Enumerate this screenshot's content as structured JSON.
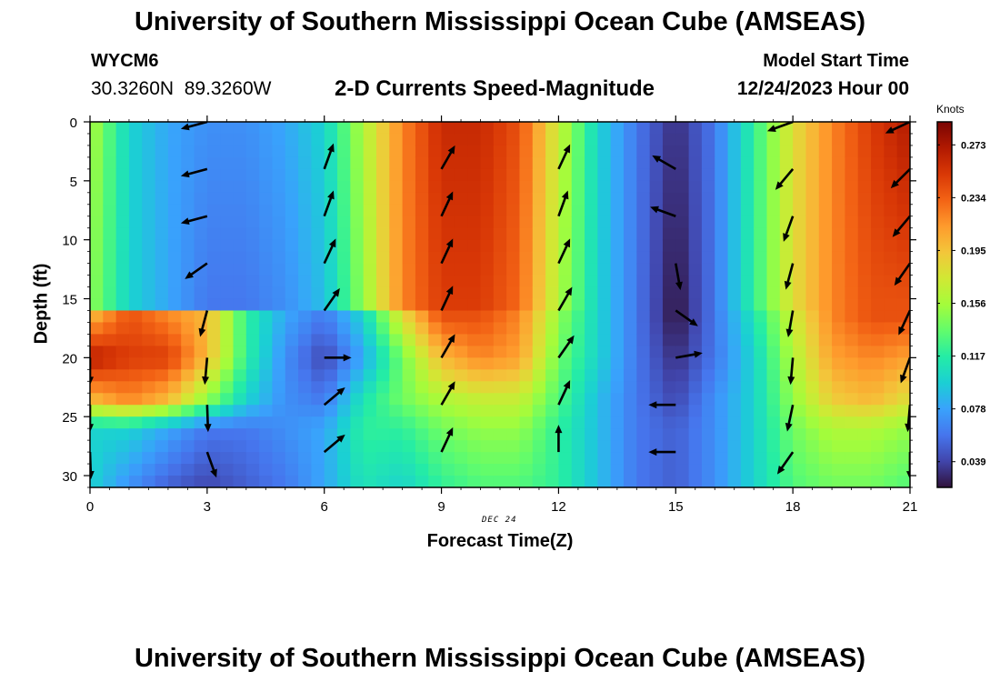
{
  "header": {
    "title": "University of Southern Mississippi Ocean Cube (AMSEAS)",
    "station_id": "WYCM6",
    "coordinates": "30.3260N  89.3260W",
    "subtitle": "2-D Currents Speed-Magnitude",
    "model_start_label": "Model Start Time",
    "model_start_value": "12/24/2023 Hour 00"
  },
  "footer": {
    "title": "University of Southern Mississippi Ocean Cube (AMSEAS)"
  },
  "colors": {
    "colormap": [
      "#30123b",
      "#4145ab",
      "#4675ed",
      "#39a2fc",
      "#1bcfd4",
      "#24eca6",
      "#61fc6c",
      "#a4fc3b",
      "#d1e834",
      "#f3c63a",
      "#fe9b2d",
      "#f36315",
      "#d93806",
      "#b11901",
      "#7a0403"
    ]
  },
  "chart_data": {
    "type": "heatmap",
    "title": "2-D Currents Speed-Magnitude",
    "xlabel": "Forecast Time(Z)",
    "ylabel": "Depth (ft)",
    "x_annotation": "DEC 24",
    "colorbar_label": "Knots",
    "xlim": [
      0,
      21
    ],
    "ylim": [
      0,
      31
    ],
    "x_ticks": [
      "0",
      "3",
      "6",
      "9",
      "12",
      "15",
      "18",
      "21"
    ],
    "y_ticks": [
      "0",
      "5",
      "10",
      "15",
      "20",
      "25",
      "30"
    ],
    "colorbar_range": [
      0.02,
      0.29
    ],
    "colorbar_ticks": [
      "0.273",
      "0.234",
      "0.195",
      "0.156",
      "0.117",
      "0.078",
      "0.039"
    ],
    "colorbar_tick_values": [
      0.273,
      0.234,
      0.195,
      0.156,
      0.117,
      0.078,
      0.039
    ],
    "time_hours": [
      0,
      1,
      2,
      3,
      4,
      5,
      6,
      7,
      8,
      9,
      10,
      11,
      12,
      13,
      14,
      15,
      16,
      17,
      18,
      19,
      20,
      21
    ],
    "depth_ft": [
      0,
      15.5,
      16.5,
      20,
      23.5,
      26,
      31
    ],
    "speed_profiles": [
      [
        0.16,
        0.15,
        0.2,
        0.27,
        0.2,
        0.1,
        0.1
      ],
      [
        0.1,
        0.1,
        0.24,
        0.25,
        0.22,
        0.1,
        0.07
      ],
      [
        0.08,
        0.08,
        0.22,
        0.25,
        0.2,
        0.08,
        0.05
      ],
      [
        0.07,
        0.06,
        0.2,
        0.2,
        0.15,
        0.06,
        0.04
      ],
      [
        0.07,
        0.06,
        0.12,
        0.12,
        0.1,
        0.06,
        0.05
      ],
      [
        0.08,
        0.07,
        0.08,
        0.07,
        0.07,
        0.07,
        0.06
      ],
      [
        0.1,
        0.09,
        0.06,
        0.04,
        0.06,
        0.08,
        0.08
      ],
      [
        0.16,
        0.15,
        0.1,
        0.08,
        0.11,
        0.12,
        0.11
      ],
      [
        0.22,
        0.22,
        0.18,
        0.14,
        0.14,
        0.12,
        0.1
      ],
      [
        0.26,
        0.25,
        0.24,
        0.2,
        0.16,
        0.14,
        0.12
      ],
      [
        0.26,
        0.25,
        0.24,
        0.22,
        0.17,
        0.15,
        0.13
      ],
      [
        0.24,
        0.23,
        0.22,
        0.21,
        0.17,
        0.15,
        0.13
      ],
      [
        0.17,
        0.16,
        0.15,
        0.14,
        0.13,
        0.12,
        0.12
      ],
      [
        0.1,
        0.1,
        0.1,
        0.1,
        0.09,
        0.09,
        0.09
      ],
      [
        0.06,
        0.06,
        0.06,
        0.06,
        0.06,
        0.06,
        0.06
      ],
      [
        0.03,
        0.02,
        0.02,
        0.03,
        0.04,
        0.05,
        0.05
      ],
      [
        0.06,
        0.06,
        0.06,
        0.06,
        0.07,
        0.07,
        0.07
      ],
      [
        0.12,
        0.12,
        0.11,
        0.1,
        0.1,
        0.1,
        0.1
      ],
      [
        0.18,
        0.18,
        0.17,
        0.16,
        0.15,
        0.14,
        0.13
      ],
      [
        0.22,
        0.22,
        0.22,
        0.21,
        0.19,
        0.16,
        0.14
      ],
      [
        0.25,
        0.24,
        0.24,
        0.22,
        0.2,
        0.16,
        0.14
      ],
      [
        0.27,
        0.24,
        0.24,
        0.21,
        0.18,
        0.15,
        0.13
      ]
    ],
    "arrows": [
      {
        "t": 3,
        "d": 0,
        "dir": 255
      },
      {
        "t": 3,
        "d": 4,
        "dir": 255
      },
      {
        "t": 3,
        "d": 8,
        "dir": 255
      },
      {
        "t": 3,
        "d": 12,
        "dir": 235
      },
      {
        "t": 3,
        "d": 16,
        "dir": 195
      },
      {
        "t": 3,
        "d": 20,
        "dir": 185
      },
      {
        "t": 3,
        "d": 24,
        "dir": 178
      },
      {
        "t": 3,
        "d": 28,
        "dir": 160
      },
      {
        "t": 6,
        "d": 4,
        "dir": 20
      },
      {
        "t": 6,
        "d": 8,
        "dir": 20
      },
      {
        "t": 6,
        "d": 12,
        "dir": 25
      },
      {
        "t": 6,
        "d": 16,
        "dir": 35
      },
      {
        "t": 6,
        "d": 20,
        "dir": 90
      },
      {
        "t": 6,
        "d": 24,
        "dir": 50
      },
      {
        "t": 6,
        "d": 28,
        "dir": 50
      },
      {
        "t": 9,
        "d": 4,
        "dir": 30
      },
      {
        "t": 9,
        "d": 8,
        "dir": 25
      },
      {
        "t": 9,
        "d": 12,
        "dir": 25
      },
      {
        "t": 9,
        "d": 16,
        "dir": 25
      },
      {
        "t": 9,
        "d": 20,
        "dir": 30
      },
      {
        "t": 9,
        "d": 24,
        "dir": 30
      },
      {
        "t": 9,
        "d": 28,
        "dir": 25
      },
      {
        "t": 12,
        "d": 4,
        "dir": 25
      },
      {
        "t": 12,
        "d": 8,
        "dir": 20
      },
      {
        "t": 12,
        "d": 12,
        "dir": 25
      },
      {
        "t": 12,
        "d": 16,
        "dir": 30
      },
      {
        "t": 12,
        "d": 20,
        "dir": 35
      },
      {
        "t": 12,
        "d": 24,
        "dir": 25
      },
      {
        "t": 12,
        "d": 28,
        "dir": 0
      },
      {
        "t": 15,
        "d": 4,
        "dir": 300
      },
      {
        "t": 15,
        "d": 8,
        "dir": 290
      },
      {
        "t": 15,
        "d": 12,
        "dir": 170
      },
      {
        "t": 15,
        "d": 16,
        "dir": 125
      },
      {
        "t": 15,
        "d": 20,
        "dir": 80
      },
      {
        "t": 15,
        "d": 24,
        "dir": 270
      },
      {
        "t": 15,
        "d": 28,
        "dir": 270
      },
      {
        "t": 18,
        "d": 0,
        "dir": 250
      },
      {
        "t": 18,
        "d": 4,
        "dir": 220
      },
      {
        "t": 18,
        "d": 8,
        "dir": 200
      },
      {
        "t": 18,
        "d": 12,
        "dir": 195
      },
      {
        "t": 18,
        "d": 16,
        "dir": 190
      },
      {
        "t": 18,
        "d": 20,
        "dir": 185
      },
      {
        "t": 18,
        "d": 24,
        "dir": 192
      },
      {
        "t": 18,
        "d": 28,
        "dir": 215
      },
      {
        "t": 21,
        "d": 0,
        "dir": 245
      },
      {
        "t": 21,
        "d": 4,
        "dir": 225
      },
      {
        "t": 21,
        "d": 8,
        "dir": 220
      },
      {
        "t": 21,
        "d": 12,
        "dir": 215
      },
      {
        "t": 21,
        "d": 16,
        "dir": 205
      },
      {
        "t": 21,
        "d": 20,
        "dir": 200
      },
      {
        "t": 21,
        "d": 24,
        "dir": 185
      },
      {
        "t": 21,
        "d": 28,
        "dir": 180
      },
      {
        "t": 0,
        "d": 20,
        "dir": 180
      },
      {
        "t": 0,
        "d": 24,
        "dir": 180
      },
      {
        "t": 0,
        "d": 28,
        "dir": 178
      }
    ]
  }
}
